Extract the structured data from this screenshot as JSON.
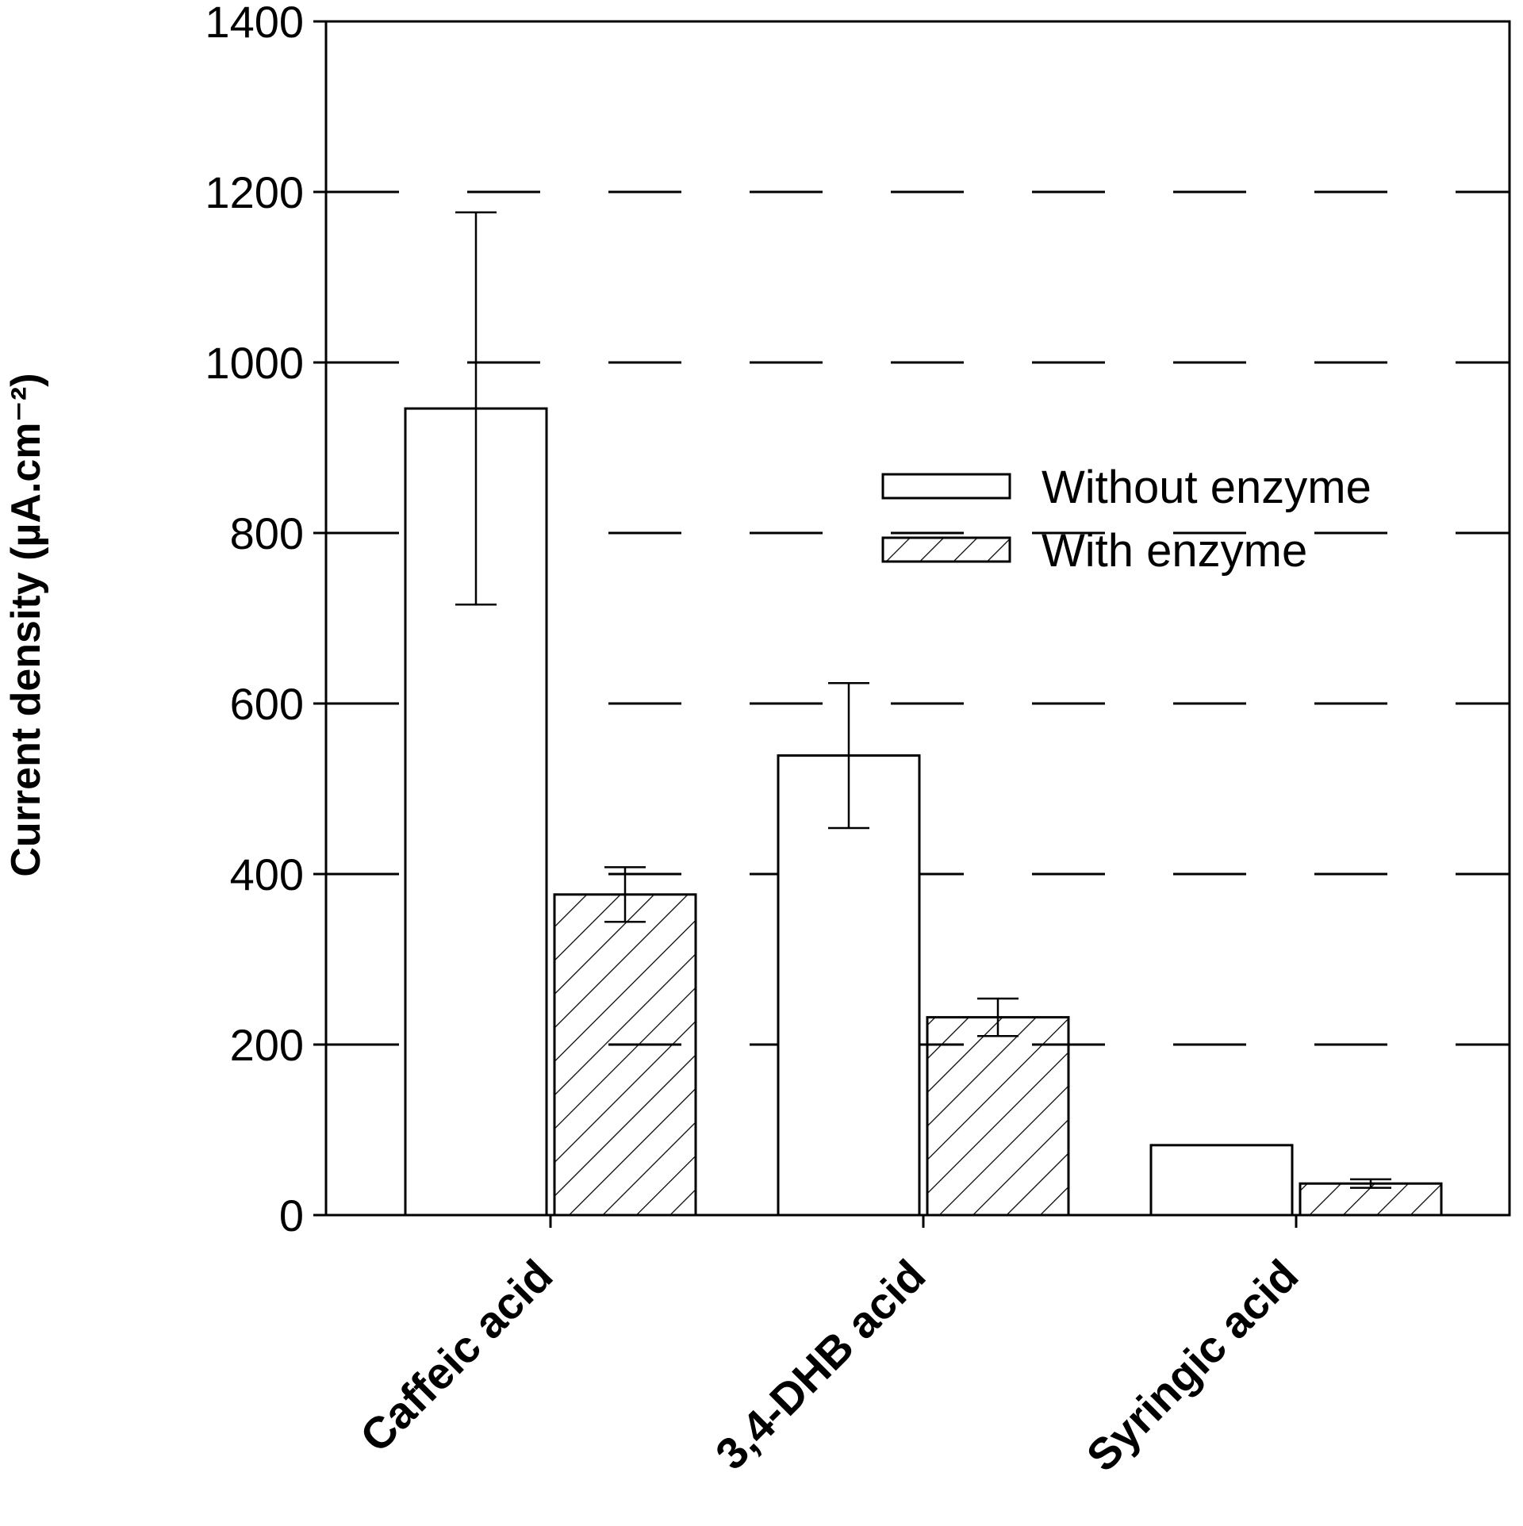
{
  "chart_data": {
    "type": "bar",
    "ylabel": "Current density (µA.cm⁻²)",
    "xlabel": "",
    "ylim": [
      0,
      1400
    ],
    "yticks": [
      0,
      200,
      400,
      600,
      800,
      1000,
      1200,
      1400
    ],
    "grid": "dashed horizontal",
    "legend_position": "upper-right",
    "categories": [
      "Caffeic acid",
      "3,4-DHB acid",
      "Syringic acid"
    ],
    "series": [
      {
        "name": "Without enzyme",
        "fill": "none",
        "values": [
          946,
          539,
          82
        ],
        "errors": [
          230,
          85,
          0
        ]
      },
      {
        "name": "With enzyme",
        "fill": "hatched",
        "values": [
          376,
          232,
          37
        ],
        "errors": [
          32,
          22,
          5
        ]
      }
    ],
    "colors": {
      "axis": "#000000",
      "bar_edge": "#000000",
      "background": "#ffffff"
    }
  }
}
